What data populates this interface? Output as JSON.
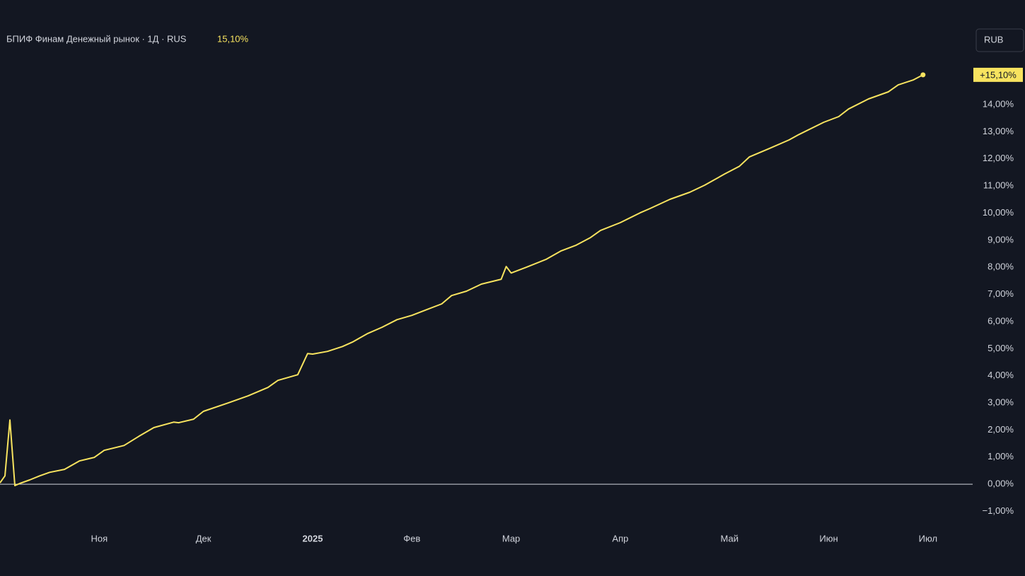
{
  "chart_data": {
    "type": "line",
    "title": "БПИФ Финам Денежный рынок · 1Д · RUS",
    "legend_value": "15,10%",
    "currency": "RUB",
    "last_value_label": "+15,10%",
    "series": [
      {
        "name": "БПИФ Финам Денежный рынок",
        "color": "#f7e35f",
        "x": [
          0,
          1,
          2,
          3,
          4,
          6,
          8,
          10,
          13,
          16,
          19,
          21,
          25,
          28,
          31,
          35,
          36,
          39,
          41,
          46,
          50,
          54,
          56,
          60,
          62,
          63,
          66,
          69,
          71,
          74,
          77,
          80,
          83,
          86,
          89,
          91,
          94,
          97,
          101,
          102,
          103,
          106,
          110,
          113,
          116,
          119,
          121,
          125,
          129,
          131,
          135,
          139,
          142,
          146,
          149,
          151,
          155,
          159,
          161,
          166,
          169,
          171,
          175,
          179,
          181,
          184,
          186
        ],
        "values": [
          0.05,
          0.31,
          2.37,
          -0.05,
          0.03,
          0.16,
          0.31,
          0.44,
          0.55,
          0.86,
          0.99,
          1.25,
          1.43,
          1.77,
          2.09,
          2.29,
          2.27,
          2.4,
          2.69,
          3.0,
          3.26,
          3.57,
          3.83,
          4.04,
          4.82,
          4.8,
          4.9,
          5.08,
          5.24,
          5.55,
          5.79,
          6.07,
          6.23,
          6.44,
          6.65,
          6.96,
          7.12,
          7.38,
          7.56,
          8.03,
          7.79,
          8.0,
          8.29,
          8.6,
          8.81,
          9.1,
          9.36,
          9.65,
          10.01,
          10.17,
          10.51,
          10.77,
          11.03,
          11.44,
          11.73,
          12.07,
          12.38,
          12.7,
          12.9,
          13.35,
          13.56,
          13.84,
          14.21,
          14.47,
          14.73,
          14.91,
          15.1
        ]
      }
    ],
    "xlim": [
      0,
      196
    ],
    "xticks": [
      {
        "value": 20,
        "label": "Ноя"
      },
      {
        "value": 41,
        "label": "Дек"
      },
      {
        "value": 63,
        "label": "2025"
      },
      {
        "value": 83,
        "label": "Фев"
      },
      {
        "value": 103,
        "label": "Мар"
      },
      {
        "value": 125,
        "label": "Апр"
      },
      {
        "value": 147,
        "label": "Май"
      },
      {
        "value": 167,
        "label": "Июн"
      },
      {
        "value": 187,
        "label": "Июл"
      }
    ],
    "ylim": [
      -1.56,
      17.86
    ],
    "yticks": [
      {
        "value": -1,
        "label": "−1,00%"
      },
      {
        "value": 0,
        "label": "0,00%"
      },
      {
        "value": 1,
        "label": "1,00%"
      },
      {
        "value": 2,
        "label": "2,00%"
      },
      {
        "value": 3,
        "label": "3,00%"
      },
      {
        "value": 4,
        "label": "4,00%"
      },
      {
        "value": 5,
        "label": "5,00%"
      },
      {
        "value": 6,
        "label": "6,00%"
      },
      {
        "value": 7,
        "label": "7,00%"
      },
      {
        "value": 8,
        "label": "8,00%"
      },
      {
        "value": 9,
        "label": "9,00%"
      },
      {
        "value": 10,
        "label": "10,00%"
      },
      {
        "value": 11,
        "label": "11,00%"
      },
      {
        "value": 12,
        "label": "12,00%"
      },
      {
        "value": 13,
        "label": "13,00%"
      },
      {
        "value": 14,
        "label": "14,00%"
      }
    ],
    "grid": false
  }
}
